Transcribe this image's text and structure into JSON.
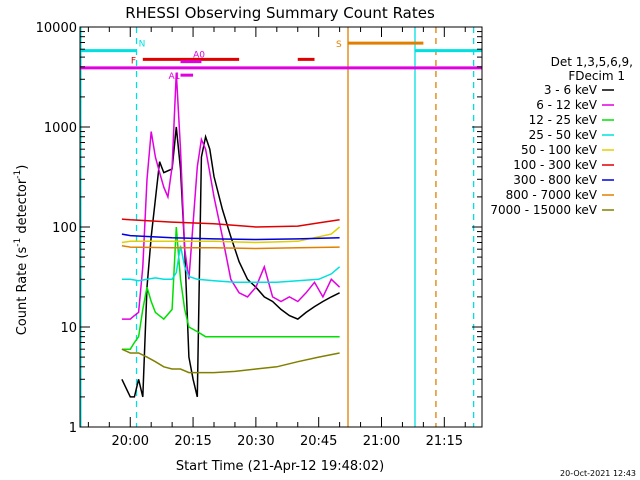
{
  "chart_data": {
    "type": "line",
    "title": "RHESSI Observing Summary Count Rates",
    "xlabel": "Start Time (21-Apr-12 19:48:02)",
    "ylabel_main": "Count Rate (s",
    "ylabel_sup": "-1",
    "ylabel_mid": " detector",
    "ylabel_end": ")",
    "yscale": "log",
    "ylim": [
      1,
      10000
    ],
    "xlim_min": [
      -12,
      84
    ],
    "yticks": [
      {
        "v": 1,
        "label": "1"
      },
      {
        "v": 10,
        "label": "10"
      },
      {
        "v": 100,
        "label": "100"
      },
      {
        "v": 1000,
        "label": "1000"
      },
      {
        "v": 10000,
        "label": "10000"
      }
    ],
    "xticks": [
      {
        "v": 0,
        "label": "20:00"
      },
      {
        "v": 15,
        "label": "20:15"
      },
      {
        "v": 30,
        "label": "20:30"
      },
      {
        "v": 45,
        "label": "20:45"
      },
      {
        "v": 60,
        "label": "21:00"
      },
      {
        "v": 75,
        "label": "21:15"
      }
    ],
    "legend_title_1": "Det 1,3,5,6,9,",
    "legend_title_2": "FDecim 1",
    "legend_position": "right",
    "series": [
      {
        "name": "3 - 6 keV",
        "color": "#000000",
        "x": [
          -2,
          0,
          1,
          2,
          3,
          4,
          5,
          7,
          8,
          10,
          11,
          12,
          13,
          14,
          15,
          16,
          17,
          18,
          19,
          20,
          22,
          24,
          26,
          28,
          30,
          32,
          34,
          36,
          38,
          40,
          42,
          44,
          46,
          48,
          50
        ],
        "y": [
          3,
          2,
          2,
          3,
          2,
          25,
          80,
          450,
          350,
          380,
          1000,
          380,
          60,
          5,
          3,
          2,
          500,
          800,
          600,
          320,
          150,
          80,
          45,
          30,
          25,
          20,
          18,
          15,
          13,
          12,
          14,
          16,
          18,
          20,
          22
        ]
      },
      {
        "name": "6 - 12 keV",
        "color": "#e000e0",
        "x": [
          -2,
          0,
          1,
          2,
          3,
          4,
          5,
          6,
          7,
          8,
          9,
          10,
          11,
          12,
          13,
          14,
          16,
          17,
          18,
          19,
          20,
          22,
          24,
          26,
          28,
          30,
          32,
          34,
          36,
          38,
          40,
          42,
          44,
          46,
          48,
          50
        ],
        "y": [
          12,
          12,
          13,
          14,
          40,
          300,
          900,
          500,
          350,
          250,
          200,
          400,
          3500,
          600,
          60,
          30,
          400,
          750,
          600,
          350,
          200,
          80,
          30,
          22,
          20,
          25,
          40,
          20,
          18,
          20,
          18,
          22,
          28,
          20,
          30,
          25
        ]
      },
      {
        "name": "12 - 25 keV",
        "color": "#00e000",
        "x": [
          -2,
          0,
          1,
          2,
          3,
          4,
          5,
          6,
          8,
          10,
          11,
          12,
          13,
          14,
          16,
          18,
          20,
          25,
          30,
          35,
          40,
          45,
          50
        ],
        "y": [
          6,
          6,
          7,
          8,
          15,
          25,
          18,
          14,
          12,
          15,
          100,
          30,
          15,
          10,
          9,
          8,
          8,
          8,
          8,
          8,
          8,
          8,
          8
        ]
      },
      {
        "name": "25 - 50 keV",
        "color": "#00e0e0",
        "x": [
          -2,
          0,
          2,
          4,
          6,
          8,
          10,
          11,
          12,
          13,
          14,
          16,
          20,
          25,
          30,
          35,
          40,
          45,
          48,
          50
        ],
        "y": [
          30,
          30,
          29,
          30,
          31,
          30,
          30,
          35,
          65,
          40,
          32,
          30,
          29,
          28,
          28,
          28,
          29,
          30,
          34,
          40
        ]
      },
      {
        "name": "50 - 100 keV",
        "color": "#e0d000",
        "x": [
          -2,
          0,
          10,
          20,
          30,
          40,
          48,
          50
        ],
        "y": [
          70,
          72,
          72,
          72,
          70,
          72,
          85,
          100
        ]
      },
      {
        "name": "100 - 300 keV",
        "color": "#e00000",
        "x": [
          -2,
          0,
          10,
          20,
          30,
          40,
          45,
          50
        ],
        "y": [
          120,
          118,
          112,
          108,
          100,
          102,
          110,
          118
        ]
      },
      {
        "name": "300 - 800 keV",
        "color": "#0000e0",
        "x": [
          -2,
          0,
          10,
          20,
          30,
          40,
          50
        ],
        "y": [
          85,
          82,
          78,
          76,
          75,
          76,
          78
        ]
      },
      {
        "name": "800 - 7000 keV",
        "color": "#e08000",
        "x": [
          -2,
          0,
          10,
          20,
          30,
          40,
          50
        ],
        "y": [
          65,
          63,
          62,
          62,
          61,
          62,
          63
        ]
      },
      {
        "name": "7000 - 15000 keV",
        "color": "#808000",
        "x": [
          -2,
          0,
          2,
          4,
          6,
          8,
          10,
          12,
          14,
          16,
          20,
          25,
          30,
          35,
          40,
          45,
          50
        ],
        "y": [
          6,
          5.5,
          5.5,
          5,
          4.5,
          4,
          3.8,
          3.8,
          3.5,
          3.5,
          3.5,
          3.6,
          3.8,
          4,
          4.5,
          5,
          5.5
        ]
      }
    ],
    "flag_bars": [
      {
        "label": "N",
        "color": "#00e0e0",
        "level": 5800,
        "segments": [
          [
            -12,
            1.5
          ],
          [
            68,
            84
          ]
        ]
      },
      {
        "label": "F",
        "color": "#e00000",
        "level": 4750,
        "segments": [
          [
            3,
            26
          ],
          [
            40,
            44
          ]
        ]
      },
      {
        "label": "S",
        "color": "#e08000",
        "level": 6900,
        "segments": [
          [
            52,
            70
          ]
        ]
      },
      {
        "label": "A0",
        "color": "#e000e0",
        "level": 4500,
        "segments": [
          [
            12,
            17
          ]
        ]
      },
      {
        "label": "A1",
        "color": "#e000e0",
        "level": 3300,
        "segments": [
          [
            12,
            15
          ]
        ]
      },
      {
        "label": "",
        "color": "#e000e0",
        "level": 3900,
        "segments": [
          [
            -12,
            84
          ]
        ]
      }
    ],
    "vlines": [
      {
        "x": -11.8,
        "color": "#00e0e0",
        "style": "solid"
      },
      {
        "x": 1.5,
        "color": "#00e0e0",
        "style": "dashed"
      },
      {
        "x": 52,
        "color": "#e08000",
        "style": "solid"
      },
      {
        "x": 68,
        "color": "#00e0e0",
        "style": "solid"
      },
      {
        "x": 73,
        "color": "#e08000",
        "style": "dashed"
      },
      {
        "x": 82,
        "color": "#00e0e0",
        "style": "dashed"
      }
    ],
    "timestamp": "20-Oct-2021 12:43"
  }
}
